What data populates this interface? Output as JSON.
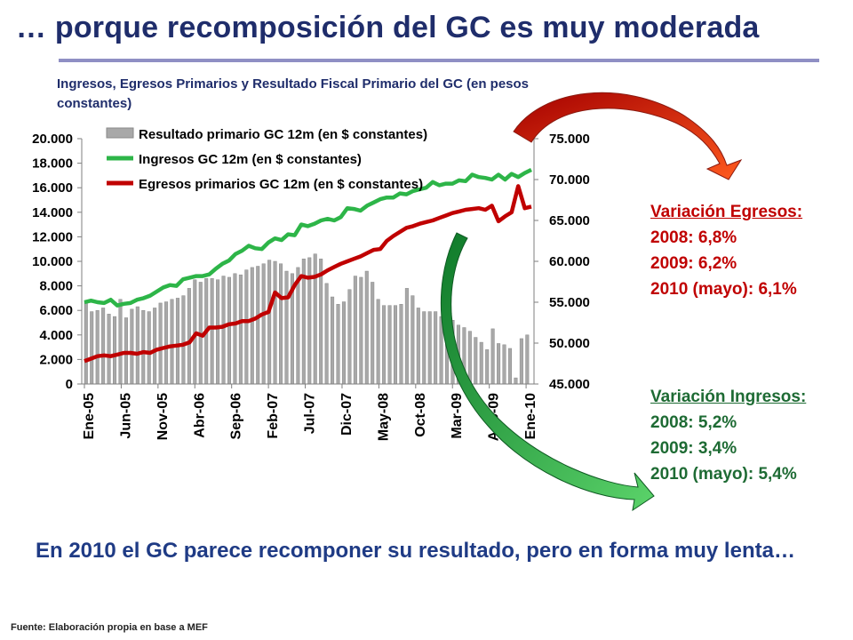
{
  "slide": {
    "title": "… porque recomposición del GC es muy moderada",
    "conclusion": "En 2010 el GC parece recomponer su resultado, pero en forma muy lenta…",
    "source": "Fuente: Elaboración propia en base a MEF"
  },
  "egresos_box": {
    "heading": "Variación Egresos:",
    "lines": [
      "2008: 6,8%",
      "2009: 6,2%",
      "2010 (mayo): 6,1%"
    ],
    "color": "#c00000"
  },
  "ingresos_box": {
    "heading": "Variación Ingresos:",
    "lines": [
      "2008: 5,2%",
      "2009: 3,4%",
      "2010 (mayo): 5,4%"
    ],
    "color": "#1e6b34"
  },
  "chart_data": {
    "type": "bar",
    "title": "Ingresos, Egresos Primarios y Resultado Fiscal Primario del GC (en pesos constantes)",
    "x_tick_labels": [
      "Ene-05",
      "Jun-05",
      "Nov-05",
      "Abr-06",
      "Sep-06",
      "Feb-07",
      "Jul-07",
      "Dic-07",
      "May-08",
      "Oct-08",
      "Mar-09",
      "Ago-09",
      "Ene-10"
    ],
    "y_left": {
      "ylim": [
        0,
        20000
      ],
      "ticks": [
        "0",
        "2.000",
        "4.000",
        "6.000",
        "8.000",
        "10.000",
        "12.000",
        "14.000",
        "16.000",
        "18.000",
        "20.000"
      ]
    },
    "y_right": {
      "ylim": [
        45000,
        75000
      ],
      "ticks": [
        "45.000",
        "50.000",
        "55.000",
        "60.000",
        "65.000",
        "70.000",
        "75.000"
      ]
    },
    "legend_position": "top-left",
    "grid": false,
    "series": [
      {
        "name": "Resultado primario GC 12m (en $ constantes)",
        "type": "bar",
        "axis": "left",
        "color": "#a6a6a6",
        "values": [
          6700,
          5900,
          6000,
          6200,
          5700,
          5500,
          6900,
          5400,
          6100,
          6300,
          6000,
          5900,
          6200,
          6600,
          6700,
          6900,
          7000,
          7200,
          7800,
          8500,
          8300,
          8600,
          8600,
          8500,
          8800,
          8700,
          9000,
          8900,
          9300,
          9500,
          9600,
          9800,
          10100,
          10000,
          9800,
          9200,
          9000,
          9500,
          10200,
          10300,
          10600,
          10200,
          8200,
          7100,
          6500,
          6700,
          7700,
          8800,
          8700,
          9200,
          8300,
          6900,
          6400,
          6400,
          6400,
          6500,
          7800,
          7200,
          6200,
          5900,
          5900,
          5900,
          5500,
          5600,
          5200,
          4800,
          4600,
          4300,
          3800,
          3400,
          2800,
          4500,
          3300,
          3200,
          2900,
          500,
          3700,
          4000
        ]
      },
      {
        "name": "Ingresos GC 12m (en $ constantes)",
        "type": "line",
        "axis": "right",
        "color": "#2db548",
        "values": [
          55000,
          55200,
          55000,
          54900,
          55300,
          54600,
          54800,
          54900,
          55300,
          55500,
          55800,
          56300,
          56800,
          57100,
          57000,
          57800,
          58000,
          58200,
          58200,
          58400,
          59100,
          59700,
          60100,
          60900,
          61300,
          61900,
          61600,
          61500,
          62300,
          62800,
          62600,
          63300,
          63200,
          64500,
          64300,
          64600,
          65000,
          65200,
          65000,
          65400,
          66500,
          66400,
          66200,
          66800,
          67200,
          67600,
          67800,
          67800,
          68300,
          68200,
          68600,
          68800,
          69000,
          69700,
          69300,
          69500,
          69500,
          69900,
          69800,
          70600,
          70300,
          70200,
          70000,
          70600,
          70000,
          70700,
          70300,
          70800,
          71200
        ],
        "samples_per_tick": 5.6
      },
      {
        "name": "Egresos primarios GC 12m (en $ constantes)",
        "type": "line",
        "axis": "right",
        "color": "#c00000",
        "values": [
          47800,
          48100,
          48400,
          48500,
          48400,
          48600,
          48800,
          48800,
          48700,
          48900,
          48800,
          49200,
          49400,
          49600,
          49700,
          49800,
          50100,
          51200,
          50900,
          51900,
          51900,
          52000,
          52300,
          52400,
          52700,
          52700,
          53000,
          53500,
          53800,
          56200,
          55500,
          55600,
          57100,
          58200,
          58000,
          58100,
          58400,
          58900,
          59300,
          59700,
          60000,
          60300,
          60600,
          61000,
          61400,
          61500,
          62500,
          63100,
          63600,
          64100,
          64300,
          64600,
          64800,
          65000,
          65300,
          65600,
          65900,
          66100,
          66300,
          66400,
          66500,
          66300,
          66800,
          64900,
          65500,
          66000,
          69200,
          66500,
          66700
        ],
        "samples_per_tick": 5.6
      }
    ]
  },
  "colors": {
    "title": "#1f2d6b",
    "rule": "#8f8fc4",
    "text_blue": "#1f3b85",
    "arrow_red": "#e8361f",
    "arrow_green": "#27a53b"
  }
}
